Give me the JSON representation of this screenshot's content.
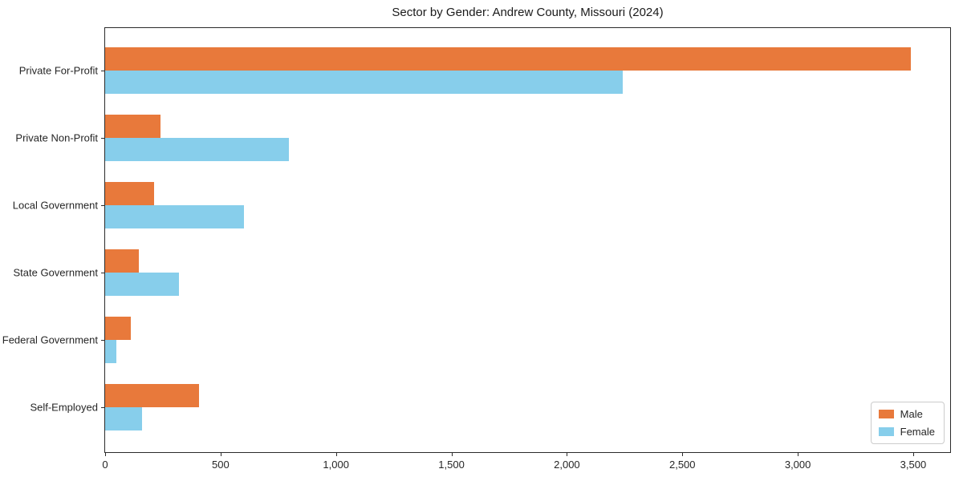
{
  "chart_data": {
    "type": "bar",
    "orientation": "horizontal",
    "title": "Sector by Gender: Andrew County, Missouri (2024)",
    "categories": [
      "Private For-Profit",
      "Private Non-Profit",
      "Local Government",
      "State Government",
      "Federal Government",
      "Self-Employed"
    ],
    "series": [
      {
        "name": "Male",
        "color": "#E8793B",
        "values": [
          3490,
          240,
          212,
          146,
          111,
          407
        ]
      },
      {
        "name": "Female",
        "color": "#87CEEB",
        "values": [
          2240,
          795,
          601,
          321,
          49,
          160
        ]
      }
    ],
    "xlabel": "",
    "ylabel": "",
    "xlim": [
      0,
      3660
    ],
    "xticks": [
      0,
      500,
      1000,
      1500,
      2000,
      2500,
      3000,
      3500
    ],
    "xtick_labels": [
      "0",
      "500",
      "1,000",
      "1,500",
      "2,000",
      "2,500",
      "3,000",
      "3,500"
    ],
    "legend_position": "lower right",
    "grid": false,
    "spine_color": "#2b2b2b",
    "background_color": "#ffffff"
  }
}
